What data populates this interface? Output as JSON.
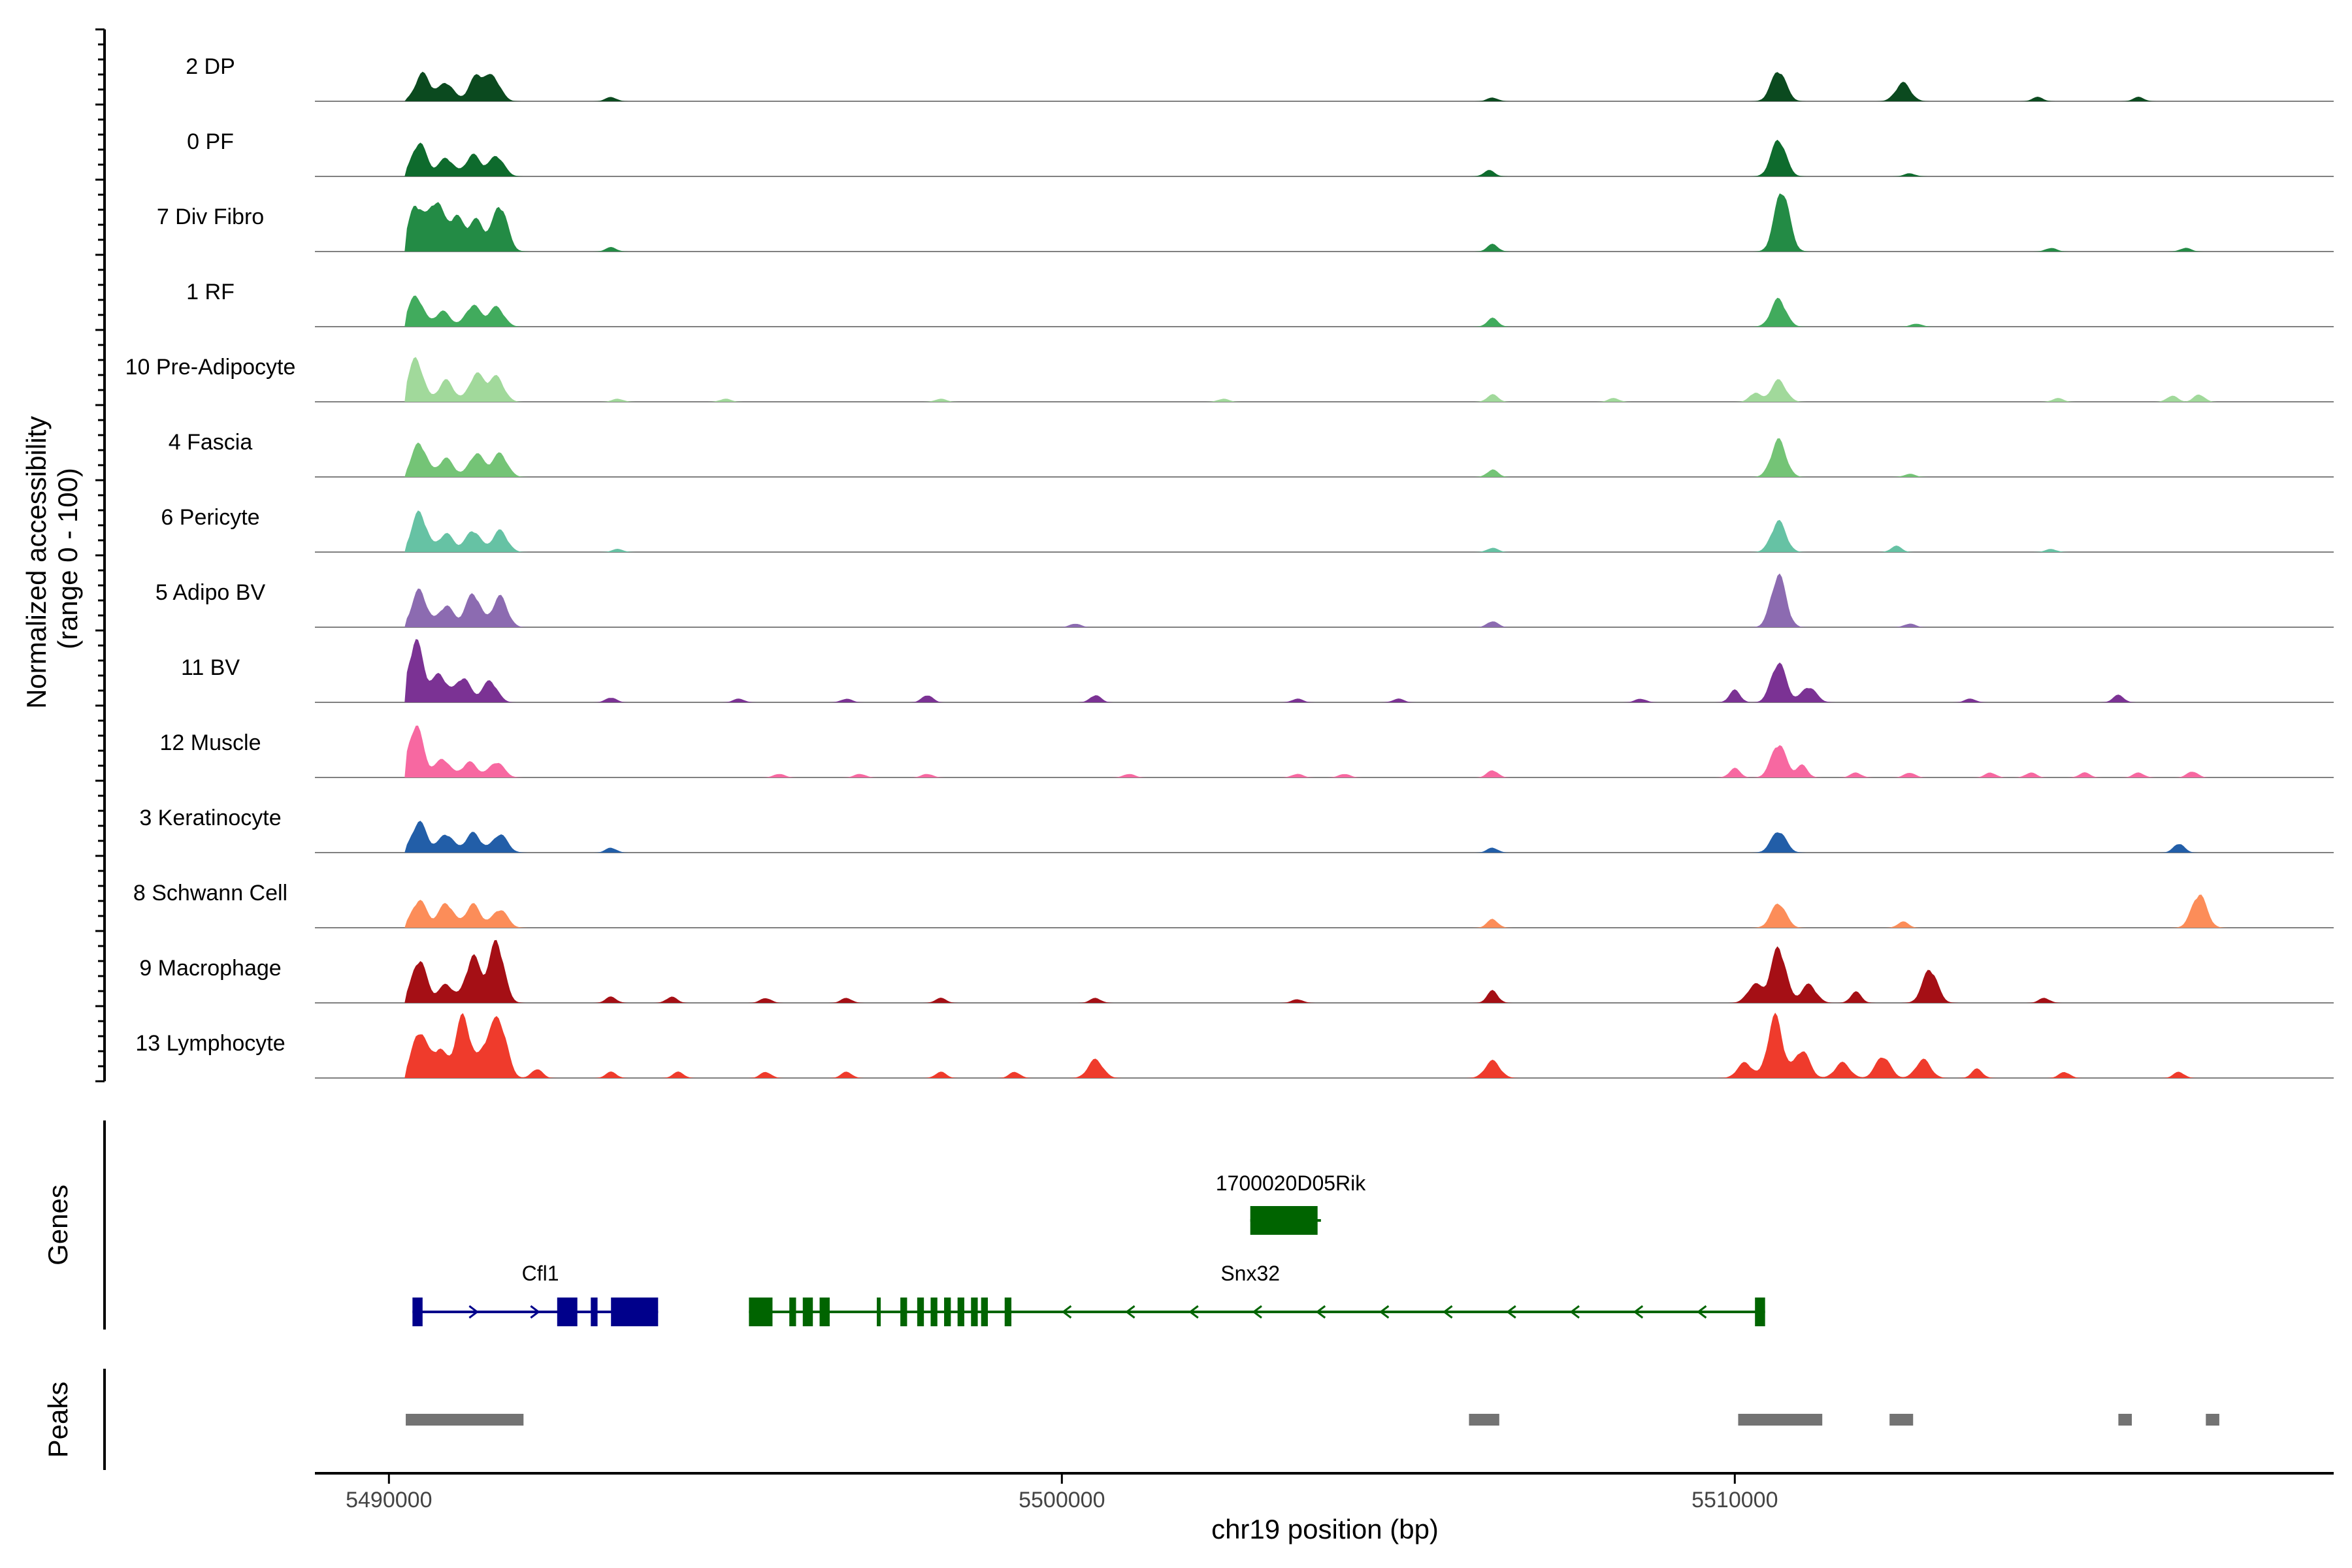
{
  "chart_data": {
    "type": "area",
    "title": "",
    "ylabel": "Normalized accessibility\n(range 0 - 100)",
    "xlabel": "chr19 position (bp)",
    "xlim": [
      4988900,
      5018900
    ],
    "x_ticks": [
      {
        "value": 4990000,
        "label": "5490000"
      },
      {
        "value": 5000000,
        "label": "5500000"
      },
      {
        "value": 5010000,
        "label": "5510000"
      }
    ],
    "tracks": [
      {
        "name": "2 DP",
        "color": "#0b4a1f",
        "peaks": [
          [
            4990500,
            0.45
          ],
          [
            4990850,
            0.3
          ],
          [
            4991300,
            0.4
          ],
          [
            4991550,
            0.38
          ],
          [
            4993300,
            0.07
          ],
          [
            5006400,
            0.06
          ],
          [
            5010650,
            0.5
          ],
          [
            5012500,
            0.3
          ],
          [
            5014500,
            0.07
          ],
          [
            5016000,
            0.07
          ]
        ]
      },
      {
        "name": "0 PF",
        "color": "#0e6b2d",
        "peaks": [
          [
            4990450,
            0.55
          ],
          [
            4990850,
            0.3
          ],
          [
            4991250,
            0.35
          ],
          [
            4991600,
            0.33
          ],
          [
            5006350,
            0.1
          ],
          [
            5010650,
            0.6
          ],
          [
            5012600,
            0.05
          ]
        ]
      },
      {
        "name": "7 Div Fibro",
        "color": "#238b45",
        "peaks": [
          [
            4990400,
            0.75
          ],
          [
            4990700,
            0.8
          ],
          [
            4991000,
            0.55
          ],
          [
            4991300,
            0.5
          ],
          [
            4991650,
            0.75
          ],
          [
            4993300,
            0.07
          ],
          [
            5006400,
            0.12
          ],
          [
            5010700,
            1.0
          ],
          [
            5014700,
            0.06
          ],
          [
            5016700,
            0.06
          ]
        ]
      },
      {
        "name": "1 RF",
        "color": "#41ab5d",
        "peaks": [
          [
            4990400,
            0.5
          ],
          [
            4990800,
            0.25
          ],
          [
            4991250,
            0.35
          ],
          [
            4991600,
            0.32
          ],
          [
            5006400,
            0.14
          ],
          [
            5010650,
            0.45
          ],
          [
            5012700,
            0.05
          ]
        ]
      },
      {
        "name": "10 Pre-Adipocyte",
        "color": "#a1d99b",
        "peaks": [
          [
            4990400,
            0.7
          ],
          [
            4990850,
            0.35
          ],
          [
            4991300,
            0.45
          ],
          [
            4991600,
            0.4
          ],
          [
            4993400,
            0.05
          ],
          [
            4995000,
            0.05
          ],
          [
            4998200,
            0.05
          ],
          [
            5002400,
            0.05
          ],
          [
            5006400,
            0.12
          ],
          [
            5008200,
            0.06
          ],
          [
            5010650,
            0.35
          ],
          [
            5010300,
            0.15
          ],
          [
            5014800,
            0.06
          ],
          [
            5016500,
            0.1
          ],
          [
            5016900,
            0.12
          ]
        ]
      },
      {
        "name": "4 Fascia",
        "color": "#74c476",
        "peaks": [
          [
            4990450,
            0.55
          ],
          [
            4990850,
            0.3
          ],
          [
            4991300,
            0.38
          ],
          [
            4991650,
            0.38
          ],
          [
            5006400,
            0.12
          ],
          [
            5010650,
            0.6
          ],
          [
            5012600,
            0.05
          ]
        ]
      },
      {
        "name": "6 Pericyte",
        "color": "#66c2a4",
        "peaks": [
          [
            4990450,
            0.65
          ],
          [
            4990850,
            0.3
          ],
          [
            4991250,
            0.35
          ],
          [
            4991650,
            0.35
          ],
          [
            4993400,
            0.05
          ],
          [
            5006400,
            0.07
          ],
          [
            5010650,
            0.5
          ],
          [
            5012400,
            0.1
          ],
          [
            5014700,
            0.05
          ]
        ]
      },
      {
        "name": "5 Adipo BV",
        "color": "#8c6bb1",
        "peaks": [
          [
            4990450,
            0.6
          ],
          [
            4990850,
            0.35
          ],
          [
            4991250,
            0.55
          ],
          [
            4991650,
            0.5
          ],
          [
            5000200,
            0.06
          ],
          [
            5006400,
            0.1
          ],
          [
            5010650,
            0.85
          ],
          [
            5012600,
            0.06
          ]
        ]
      },
      {
        "name": "11 BV",
        "color": "#7b3294",
        "peaks": [
          [
            4990400,
            1.0
          ],
          [
            4990750,
            0.45
          ],
          [
            4991100,
            0.4
          ],
          [
            4991500,
            0.35
          ],
          [
            4993300,
            0.08
          ],
          [
            4995200,
            0.06
          ],
          [
            4996800,
            0.06
          ],
          [
            4998000,
            0.12
          ],
          [
            5000500,
            0.12
          ],
          [
            5003500,
            0.06
          ],
          [
            5005000,
            0.06
          ],
          [
            5008600,
            0.06
          ],
          [
            5010000,
            0.2
          ],
          [
            5010650,
            0.65
          ],
          [
            5011100,
            0.25
          ],
          [
            5013500,
            0.06
          ],
          [
            5015700,
            0.12
          ]
        ]
      },
      {
        "name": "12 Muscle",
        "color": "#f768a1",
        "peaks": [
          [
            4990400,
            0.85
          ],
          [
            4990800,
            0.3
          ],
          [
            4991200,
            0.25
          ],
          [
            4991600,
            0.25
          ],
          [
            4995800,
            0.06
          ],
          [
            4997000,
            0.06
          ],
          [
            4998000,
            0.06
          ],
          [
            5001000,
            0.06
          ],
          [
            5003500,
            0.06
          ],
          [
            5004200,
            0.06
          ],
          [
            5006400,
            0.12
          ],
          [
            5010000,
            0.15
          ],
          [
            5010650,
            0.55
          ],
          [
            5011000,
            0.2
          ],
          [
            5011800,
            0.08
          ],
          [
            5012600,
            0.08
          ],
          [
            5013800,
            0.08
          ],
          [
            5014400,
            0.08
          ],
          [
            5015200,
            0.08
          ],
          [
            5016000,
            0.08
          ],
          [
            5016800,
            0.1
          ]
        ]
      },
      {
        "name": "3 Keratinocyte",
        "color": "#225ea8",
        "peaks": [
          [
            4990450,
            0.5
          ],
          [
            4990850,
            0.3
          ],
          [
            4991250,
            0.32
          ],
          [
            4991650,
            0.3
          ],
          [
            4993300,
            0.08
          ],
          [
            5006400,
            0.08
          ],
          [
            5010650,
            0.35
          ],
          [
            5016600,
            0.15
          ]
        ]
      },
      {
        "name": "8 Schwann Cell",
        "color": "#fc8d59",
        "peaks": [
          [
            4990450,
            0.45
          ],
          [
            4990850,
            0.4
          ],
          [
            4991250,
            0.38
          ],
          [
            4991650,
            0.3
          ],
          [
            5006400,
            0.14
          ],
          [
            5010650,
            0.4
          ],
          [
            5012500,
            0.1
          ],
          [
            5016900,
            0.55
          ]
        ]
      },
      {
        "name": "9 Macrophage",
        "color": "#a50f15",
        "peaks": [
          [
            4990450,
            0.7
          ],
          [
            4990850,
            0.3
          ],
          [
            4991250,
            0.75
          ],
          [
            4991600,
            1.0
          ],
          [
            4993300,
            0.1
          ],
          [
            4994200,
            0.1
          ],
          [
            4995600,
            0.08
          ],
          [
            4996800,
            0.08
          ],
          [
            4998200,
            0.08
          ],
          [
            5000500,
            0.08
          ],
          [
            5003500,
            0.06
          ],
          [
            5006400,
            0.2
          ],
          [
            5010300,
            0.3
          ],
          [
            5010650,
            0.9
          ],
          [
            5011100,
            0.3
          ],
          [
            5011800,
            0.18
          ],
          [
            5012900,
            0.55
          ],
          [
            5014600,
            0.08
          ]
        ]
      },
      {
        "name": "13 Lymphocyte",
        "color": "#ef3b2c",
        "peaks": [
          [
            4990450,
            0.75
          ],
          [
            4990750,
            0.45
          ],
          [
            4991100,
            1.0
          ],
          [
            4991450,
            0.5
          ],
          [
            4991650,
            0.85
          ],
          [
            4992200,
            0.15
          ],
          [
            4993300,
            0.1
          ],
          [
            4994300,
            0.1
          ],
          [
            4995600,
            0.1
          ],
          [
            4996800,
            0.1
          ],
          [
            4998200,
            0.1
          ],
          [
            4999300,
            0.1
          ],
          [
            5000500,
            0.3
          ],
          [
            5006400,
            0.28
          ],
          [
            5010150,
            0.25
          ],
          [
            5010600,
            1.0
          ],
          [
            5011000,
            0.45
          ],
          [
            5011600,
            0.25
          ],
          [
            5012200,
            0.35
          ],
          [
            5012800,
            0.3
          ],
          [
            5013600,
            0.15
          ],
          [
            5014900,
            0.1
          ],
          [
            5016600,
            0.1
          ]
        ]
      }
    ],
    "genes": [
      {
        "name": "1700020D05Rik",
        "color": "#006400",
        "strand": "-",
        "start": 5002800,
        "end": 5003850,
        "exons": [
          [
            5002800,
            5003800
          ]
        ]
      },
      {
        "name": "Cfl1",
        "color": "#00008b",
        "strand": "+",
        "start": 4990350,
        "end": 4994000,
        "exons": [
          [
            4990350,
            4990500
          ],
          [
            4992500,
            4992800
          ],
          [
            4993000,
            4993100
          ],
          [
            4993300,
            4994000
          ]
        ]
      },
      {
        "name": "Snx32",
        "color": "#006400",
        "strand": "-",
        "start": 4995350,
        "end": 5010450,
        "exons": [
          [
            4995350,
            4995700
          ],
          [
            4995950,
            4996050
          ],
          [
            4996150,
            4996300
          ],
          [
            4996400,
            4996550
          ],
          [
            4997250,
            4997300
          ],
          [
            4997600,
            4997700
          ],
          [
            4997850,
            4997950
          ],
          [
            4998050,
            4998150
          ],
          [
            4998250,
            4998350
          ],
          [
            4998450,
            4998550
          ],
          [
            4998650,
            4998750
          ],
          [
            4998800,
            4998900
          ],
          [
            4999150,
            4999250
          ],
          [
            5010300,
            5010450
          ]
        ]
      }
    ],
    "peak_regions": [
      [
        4990250,
        4992000
      ],
      [
        5006050,
        5006500
      ],
      [
        5010050,
        5011300
      ],
      [
        5012300,
        5012650
      ],
      [
        5015700,
        5015900
      ],
      [
        5017000,
        5017200
      ]
    ]
  },
  "panels": {
    "genes_label": "Genes",
    "peaks_label": "Peaks"
  }
}
